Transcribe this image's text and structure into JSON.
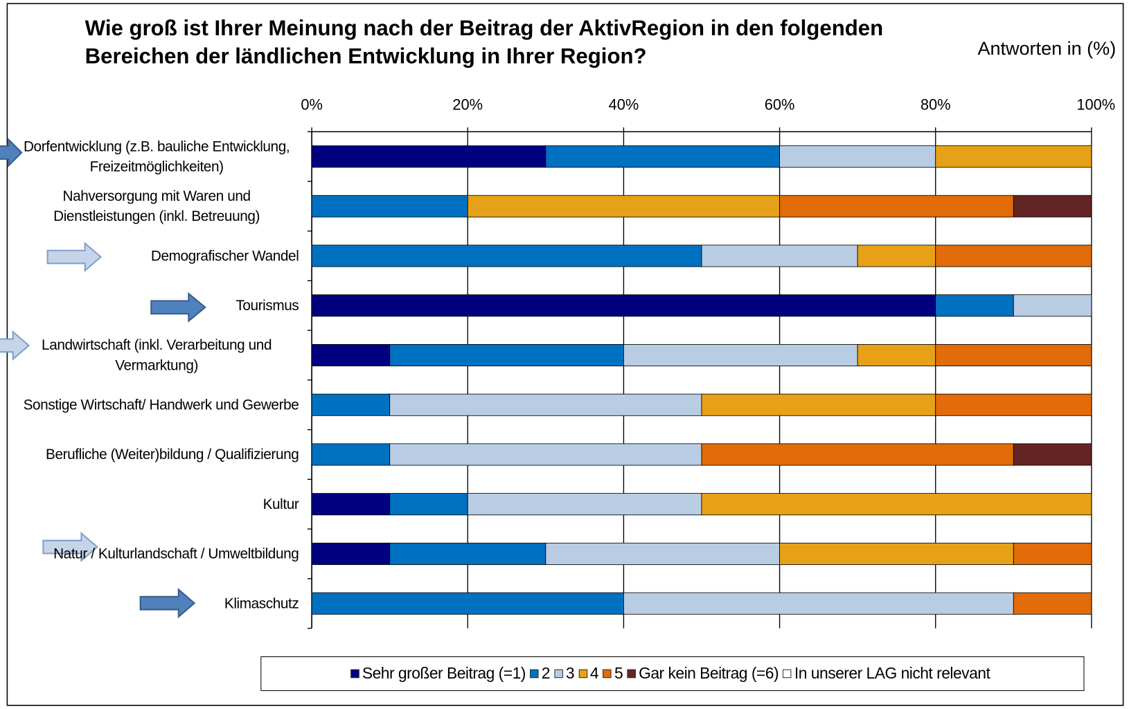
{
  "chart_data": {
    "type": "stacked-bar-horizontal",
    "title": "Wie groß ist Ihrer Meinung nach der Beitrag der AktivRegion in den folgenden Bereichen der ländlichen Entwicklung in Ihrer Region?",
    "subtitle": "Antworten in (%)",
    "categories": [
      "Dorfentwicklung (z.B. bauliche Entwicklung, Freizeitmöglichkeiten)",
      "Nahversorgung mit Waren und Dienstleistungen (inkl. Betreuung)",
      "Demografischer Wandel",
      "Tourismus",
      "Landwirtschaft (inkl. Verarbeitung und Vermarktung)",
      "Sonstige Wirtschaft/ Handwerk und Gewerbe",
      "Berufliche (Weiter)bildung / Qualifizierung",
      "Kultur",
      "Natur / Kulturlandschaft / Umweltbildung",
      "Klimaschutz"
    ],
    "series": [
      {
        "name": "Sehr großer Beitrag (=1)",
        "color": "#000080",
        "values": [
          30,
          0,
          0,
          80,
          10,
          0,
          0,
          10,
          10,
          0
        ]
      },
      {
        "name": "2",
        "color": "#0070c0",
        "values": [
          30,
          20,
          50,
          10,
          30,
          10,
          10,
          10,
          20,
          40
        ]
      },
      {
        "name": "3",
        "color": "#b8cce4",
        "values": [
          20,
          0,
          20,
          10,
          30,
          40,
          40,
          30,
          30,
          50
        ]
      },
      {
        "name": "4",
        "color": "#e6a118",
        "values": [
          20,
          40,
          10,
          0,
          10,
          30,
          0,
          50,
          30,
          0
        ]
      },
      {
        "name": "5",
        "color": "#e26b0a",
        "values": [
          0,
          30,
          20,
          0,
          20,
          20,
          40,
          0,
          10,
          10
        ]
      },
      {
        "name": "Gar kein Beitrag (=6)",
        "color": "#632523",
        "values": [
          0,
          10,
          0,
          0,
          0,
          0,
          10,
          0,
          0,
          0
        ]
      },
      {
        "name": "In unserer LAG nicht relevant",
        "color": "#ffffff",
        "values": [
          0,
          0,
          0,
          0,
          0,
          0,
          0,
          0,
          0,
          0
        ]
      }
    ],
    "xlim": [
      0,
      100
    ],
    "xticks": [
      {
        "value": 0,
        "label": "0%"
      },
      {
        "value": 20,
        "label": "20%"
      },
      {
        "value": 40,
        "label": "40%"
      },
      {
        "value": 60,
        "label": "60%"
      },
      {
        "value": 80,
        "label": "80%"
      },
      {
        "value": 100,
        "label": "100%"
      }
    ],
    "grid": true,
    "legend": "bottom"
  }
}
